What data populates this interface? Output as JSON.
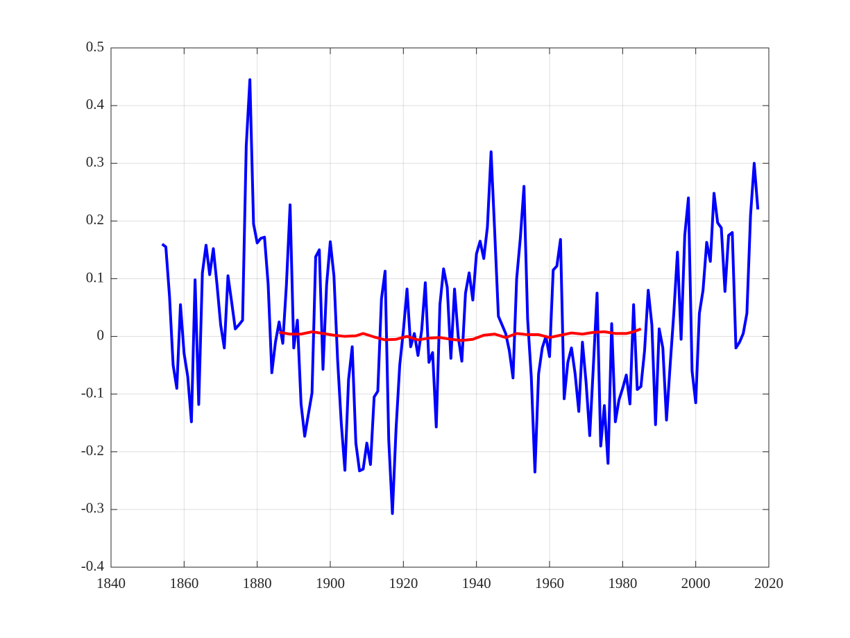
{
  "chart_data": {
    "type": "line",
    "xlim": [
      1840,
      2020
    ],
    "xticks": [
      1840,
      1860,
      1880,
      1900,
      1920,
      1940,
      1960,
      1980,
      2000,
      2020
    ],
    "ylim": [
      -0.4,
      0.5
    ],
    "yticks": [
      -0.4,
      -0.3,
      -0.2,
      -0.1,
      0,
      0.1,
      0.2,
      0.3,
      0.4,
      0.5
    ],
    "grid": true,
    "series": [
      {
        "color": "#0000ff",
        "x": [
          1854,
          1855,
          1856,
          1857,
          1858,
          1859,
          1860,
          1861,
          1862,
          1863,
          1864,
          1865,
          1866,
          1867,
          1868,
          1869,
          1870,
          1871,
          1872,
          1873,
          1874,
          1875,
          1876,
          1877,
          1878,
          1879,
          1880,
          1881,
          1882,
          1883,
          1884,
          1885,
          1886,
          1887,
          1888,
          1889,
          1890,
          1891,
          1892,
          1893,
          1894,
          1895,
          1896,
          1897,
          1898,
          1899,
          1900,
          1901,
          1902,
          1903,
          1904,
          1905,
          1906,
          1907,
          1908,
          1909,
          1910,
          1911,
          1912,
          1913,
          1914,
          1915,
          1916,
          1917,
          1918,
          1919,
          1920,
          1921,
          1922,
          1923,
          1924,
          1925,
          1926,
          1927,
          1928,
          1929,
          1930,
          1931,
          1932,
          1933,
          1934,
          1935,
          1936,
          1937,
          1938,
          1939,
          1940,
          1941,
          1942,
          1943,
          1944,
          1945,
          1946,
          1947,
          1948,
          1949,
          1950,
          1951,
          1952,
          1953,
          1954,
          1955,
          1956,
          1957,
          1958,
          1959,
          1960,
          1961,
          1962,
          1963,
          1964,
          1965,
          1966,
          1967,
          1968,
          1969,
          1970,
          1971,
          1972,
          1973,
          1974,
          1975,
          1976,
          1977,
          1978,
          1979,
          1980,
          1981,
          1982,
          1983,
          1984,
          1985,
          1986,
          1987,
          1988,
          1989,
          1990,
          1991,
          1992,
          1993,
          1994,
          1995,
          1996,
          1997,
          1998,
          1999,
          2000,
          2001,
          2002,
          2003,
          2004,
          2005,
          2006,
          2007,
          2008,
          2009,
          2010,
          2011,
          2012,
          2013,
          2014,
          2015,
          2016,
          2017
        ],
        "values": [
          0.16,
          0.155,
          0.07,
          -0.05,
          -0.09,
          0.055,
          -0.03,
          -0.07,
          -0.148,
          0.098,
          -0.118,
          0.11,
          0.158,
          0.107,
          0.152,
          0.09,
          0.02,
          -0.02,
          0.105,
          0.06,
          0.013,
          0.02,
          0.028,
          0.33,
          0.445,
          0.195,
          0.162,
          0.17,
          0.172,
          0.09,
          -0.063,
          -0.01,
          0.025,
          -0.012,
          0.09,
          0.228,
          -0.02,
          0.028,
          -0.117,
          -0.173,
          -0.135,
          -0.098,
          0.138,
          0.15,
          -0.057,
          0.09,
          0.164,
          0.105,
          -0.04,
          -0.15,
          -0.232,
          -0.075,
          -0.018,
          -0.185,
          -0.233,
          -0.23,
          -0.185,
          -0.222,
          -0.105,
          -0.095,
          0.065,
          0.113,
          -0.18,
          -0.307,
          -0.16,
          -0.05,
          0.01,
          0.082,
          -0.018,
          0.005,
          -0.033,
          0.01,
          0.093,
          -0.045,
          -0.028,
          -0.157,
          0.055,
          0.117,
          0.085,
          -0.038,
          0.082,
          0.0,
          -0.043,
          0.075,
          0.11,
          0.063,
          0.143,
          0.165,
          0.135,
          0.19,
          0.32,
          0.18,
          0.035,
          0.02,
          0.005,
          -0.025,
          -0.072,
          0.1,
          0.17,
          0.26,
          0.03,
          -0.07,
          -0.235,
          -0.065,
          -0.02,
          0.0,
          -0.035,
          0.115,
          0.122,
          0.168,
          -0.108,
          -0.045,
          -0.02,
          -0.065,
          -0.13,
          -0.01,
          -0.08,
          -0.172,
          -0.05,
          0.075,
          -0.19,
          -0.12,
          -0.22,
          0.022,
          -0.148,
          -0.11,
          -0.09,
          -0.067,
          -0.117,
          0.055,
          -0.092,
          -0.087,
          -0.025,
          0.08,
          0.02,
          -0.153,
          0.013,
          -0.02,
          -0.145,
          -0.05,
          0.04,
          0.146,
          -0.005,
          0.175,
          0.24,
          -0.06,
          -0.115,
          0.04,
          0.08,
          0.163,
          0.13,
          0.248,
          0.197,
          0.188,
          0.078,
          0.175,
          0.18,
          -0.02,
          -0.01,
          0.005,
          0.04,
          0.21,
          0.3,
          0.22
        ]
      },
      {
        "color": "#ff0000",
        "x": [
          1886,
          1889,
          1892,
          1895,
          1898,
          1901,
          1904,
          1907,
          1909,
          1912,
          1915,
          1918,
          1921,
          1924,
          1927,
          1930,
          1933,
          1936,
          1939,
          1942,
          1945,
          1948,
          1951,
          1954,
          1957,
          1960,
          1963,
          1966,
          1969,
          1972,
          1975,
          1978,
          1981,
          1983,
          1985
        ],
        "values": [
          0.007,
          0.004,
          0.004,
          0.008,
          0.005,
          0.002,
          0.0,
          0.001,
          0.005,
          -0.001,
          -0.006,
          -0.005,
          0.0,
          -0.006,
          -0.003,
          -0.002,
          -0.005,
          -0.007,
          -0.005,
          0.002,
          0.004,
          -0.002,
          0.005,
          0.003,
          0.003,
          -0.002,
          0.002,
          0.006,
          0.004,
          0.007,
          0.008,
          0.005,
          0.005,
          0.008,
          0.013
        ]
      }
    ]
  }
}
